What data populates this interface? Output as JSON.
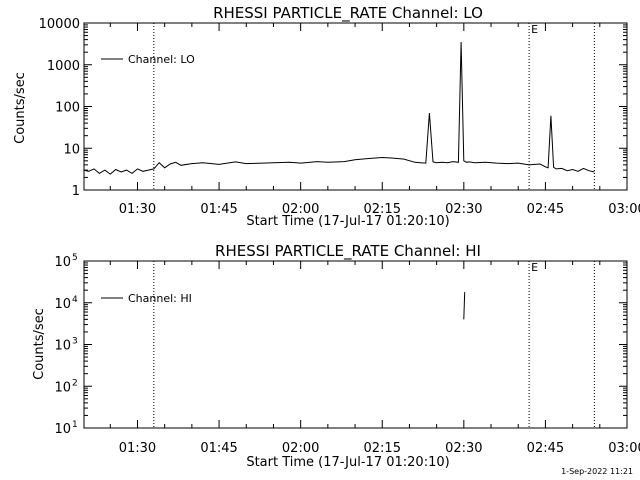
{
  "footer_date": "1-Sep-2022 11:21",
  "chart_data": [
    {
      "type": "line",
      "title": "RHESSI PARTICLE_RATE Channel: LO",
      "xlabel": "Start Time (17-Jul-17 01:20:10)",
      "ylabel": "Counts/sec",
      "y_scale": "log",
      "xlim": [
        "01:20:10",
        "03:00"
      ],
      "ylim": [
        1,
        10000
      ],
      "x_ticks": [
        "01:30",
        "01:45",
        "02:00",
        "02:15",
        "02:30",
        "02:45",
        "03:00"
      ],
      "y_ticks": [
        {
          "value": 1,
          "label": "1"
        },
        {
          "value": 10,
          "label": "10"
        },
        {
          "value": 100,
          "label": "100"
        },
        {
          "value": 1000,
          "label": "1000"
        },
        {
          "value": 10000,
          "label": "10000"
        }
      ],
      "vertical_lines": [
        "01:33",
        "02:42",
        "02:54"
      ],
      "flag_marker": {
        "x": "02:42",
        "label": "E"
      },
      "legend": {
        "placement": "top-left",
        "entries": [
          "Channel: LO"
        ]
      },
      "series": [
        {
          "name": "Channel: LO",
          "x": [
            "01:20:10",
            "01:21",
            "01:22",
            "01:23",
            "01:24",
            "01:25",
            "01:26",
            "01:27",
            "01:28",
            "01:29",
            "01:30",
            "01:31",
            "01:32",
            "01:33",
            "01:34",
            "01:35",
            "01:36",
            "01:37",
            "01:38",
            "01:40",
            "01:42",
            "01:45",
            "01:48",
            "01:50",
            "01:53",
            "01:55",
            "01:58",
            "02:00",
            "02:03",
            "02:05",
            "02:08",
            "02:10",
            "02:12",
            "02:15",
            "02:17",
            "02:19",
            "02:21",
            "02:22",
            "02:23",
            "02:23:40",
            "02:24:20",
            "02:25",
            "02:26",
            "02:27",
            "02:28",
            "02:29",
            "02:29:30",
            "02:30",
            "02:30:30",
            "02:31",
            "02:32",
            "02:34",
            "02:36",
            "02:38",
            "02:40",
            "02:42",
            "02:43",
            "02:44",
            "02:45",
            "02:45:30",
            "02:46",
            "02:46:30",
            "02:47",
            "02:48",
            "02:49",
            "02:50",
            "02:51",
            "02:52",
            "02:53",
            "02:54"
          ],
          "y": [
            3,
            2.8,
            3.2,
            2.5,
            3,
            2.4,
            3.1,
            2.7,
            3,
            2.5,
            3.2,
            2.8,
            3,
            3.2,
            4.5,
            3.4,
            4.2,
            4.6,
            3.9,
            4.3,
            4.5,
            4.1,
            4.7,
            4.3,
            4.4,
            4.5,
            4.6,
            4.4,
            4.8,
            4.6,
            4.8,
            5.3,
            5.6,
            6,
            5.8,
            5.5,
            4.6,
            4.5,
            4.4,
            70,
            4.7,
            4.5,
            4.6,
            4.5,
            4.8,
            4.6,
            3500,
            5,
            4.6,
            4.7,
            4.5,
            4.6,
            4.4,
            4.3,
            4.4,
            4,
            4.1,
            4.2,
            3.6,
            3.4,
            60,
            3.5,
            3.2,
            3.3,
            2.9,
            3.1,
            2.8,
            3.3,
            2.9,
            2.7
          ]
        }
      ]
    },
    {
      "type": "line",
      "title": "RHESSI PARTICLE_RATE Channel: HI",
      "xlabel": "Start Time (17-Jul-17 01:20:10)",
      "ylabel": "Counts/sec",
      "y_scale": "log",
      "xlim": [
        "01:20:10",
        "03:00"
      ],
      "ylim": [
        10,
        100000
      ],
      "x_ticks": [
        "01:30",
        "01:45",
        "02:00",
        "02:15",
        "02:30",
        "02:45",
        "03:00"
      ],
      "y_ticks": [
        {
          "value": 10,
          "base": "10",
          "exp": "1"
        },
        {
          "value": 100,
          "base": "10",
          "exp": "2"
        },
        {
          "value": 1000,
          "base": "10",
          "exp": "3"
        },
        {
          "value": 10000,
          "base": "10",
          "exp": "4"
        },
        {
          "value": 100000,
          "base": "10",
          "exp": "5"
        }
      ],
      "vertical_lines": [
        "01:33",
        "02:42",
        "02:54"
      ],
      "flag_marker": {
        "x": "02:42",
        "label": "E"
      },
      "legend": {
        "placement": "top-left",
        "entries": [
          "Channel: HI"
        ]
      },
      "series": [
        {
          "name": "Channel: HI",
          "x": [
            "02:30",
            "02:30:10"
          ],
          "y": [
            4000,
            18000
          ]
        }
      ]
    }
  ]
}
